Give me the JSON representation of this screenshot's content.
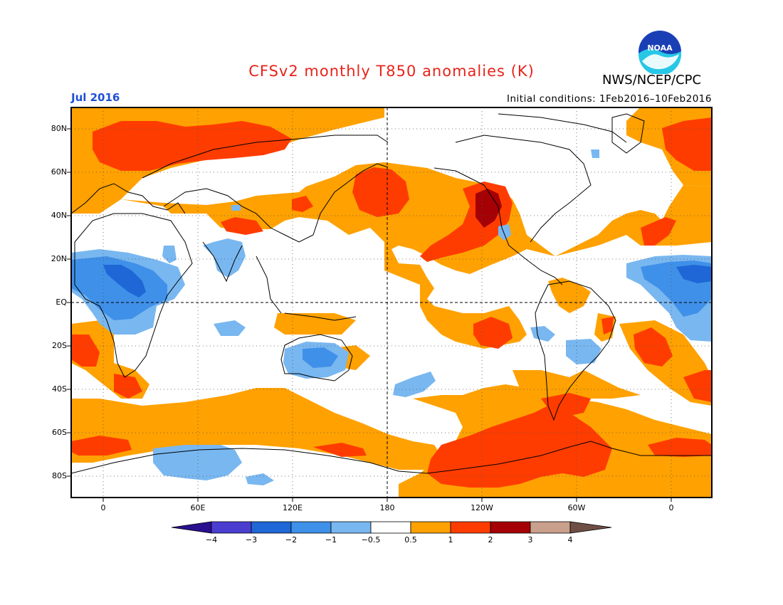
{
  "title": "CFSv2 monthly T850 anomalies (K)",
  "agency": "NWS/NCEP/CPC",
  "logo_text": "NOAA",
  "valid_period": "Jul 2016",
  "initial_conditions": "Initial conditions: 1Feb2016–10Feb2016",
  "lat_labels": [
    "80N",
    "60N",
    "40N",
    "20N",
    "EQ",
    "20S",
    "40S",
    "60S",
    "80S"
  ],
  "lon_labels": [
    "0",
    "60E",
    "120E",
    "180",
    "120W",
    "60W",
    "0"
  ],
  "colorbar": {
    "labels": [
      "−4",
      "−3",
      "−2",
      "−1",
      "−0.5",
      "0.5",
      "1",
      "2",
      "3",
      "4"
    ],
    "colors": [
      "#2a0f8f",
      "#4a3ed1",
      "#1f66d6",
      "#3f90e8",
      "#79b7f0",
      "#ffffff",
      "#ffa100",
      "#ff3c00",
      "#a50005",
      "#c9a08c",
      "#6e4e45"
    ]
  },
  "palette": {
    "warm1": "#ffa100",
    "warm2": "#ff3c00",
    "warm3": "#a50005",
    "cool1": "#79b7f0",
    "cool2": "#3f90e8",
    "cool3": "#1f66d6",
    "title": "#e8231a",
    "period": "#1f4fd6"
  }
}
